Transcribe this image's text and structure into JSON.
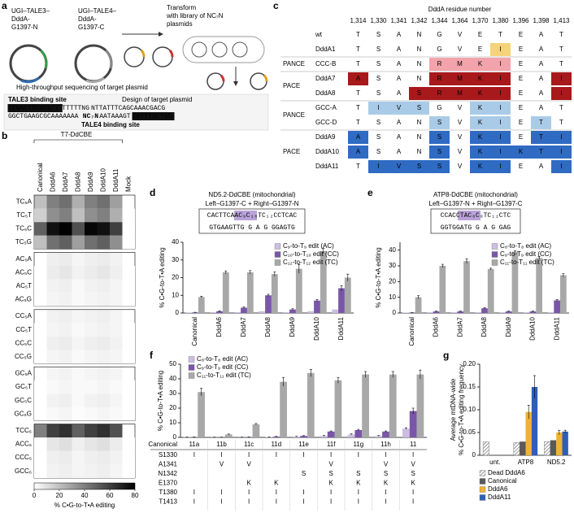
{
  "panel_labels": [
    "a",
    "b",
    "c",
    "d",
    "e",
    "f",
    "g"
  ],
  "diagram_a": {
    "plasmid_1": [
      "UGI–TALE3–",
      "DddA-",
      "G1397-N"
    ],
    "plasmid_2": [
      "UGI–TALE4–",
      "DddA-",
      "G1397-C"
    ],
    "step_1": [
      "Transform",
      "with library of NC₇N",
      "plasmids"
    ],
    "step_2": "High-throughput sequencing of target plasmid",
    "target_title": "Design of target plasmid",
    "site_top": "TALE3 binding site",
    "site_bottom": "TALE4 binding site",
    "seq_top": [
      "CCGACTTCGCGTT",
      "TTTTTNG",
      "NTTATTTCAGCAAACGACG"
    ],
    "seq_bottom": [
      "GGCTGAAGCGCAAAAAAA",
      "NC₇N",
      "AATAAAGT",
      "CGTTTGCTGC"
    ]
  },
  "table_c": {
    "header": "DddA residue number",
    "residues": [
      "1,314",
      "1,330",
      "1,341",
      "1,342",
      "1,344",
      "1,364",
      "1,370",
      "1,380",
      "1,396",
      "1,398",
      "1,413"
    ],
    "sections": [
      {
        "rows": [
          {
            "label": "wt",
            "cells": [
              "T",
              "S",
              "A",
              "N",
              "G",
              "V",
              "E",
              "T",
              "E",
              "A",
              "T"
            ]
          },
          {
            "label": "DddA1",
            "color": "#f5d37a",
            "cells": [
              "T",
              "S",
              "A",
              "N",
              "G",
              "V",
              "E",
              "I",
              "E",
              "A",
              "T"
            ]
          }
        ]
      },
      {
        "name": "PANCE",
        "rows": [
          {
            "label": "CCC-B",
            "color": "#f2a3ab",
            "cells": [
              "T",
              "S",
              "A",
              "N",
              "R",
              "M",
              "K",
              "I",
              "E",
              "A",
              "T"
            ]
          }
        ]
      },
      {
        "name": "PACE",
        "rows": [
          {
            "label": "DddA7",
            "color": "#a8191c",
            "cells": [
              "A",
              "S",
              "A",
              "N",
              "R",
              "M",
              "K",
              "I",
              "E",
              "A",
              "I"
            ]
          },
          {
            "label": "DddA8",
            "color": "#a8191c",
            "cells": [
              "T",
              "S",
              "A",
              "S",
              "R",
              "M",
              "K",
              "I",
              "E",
              "A",
              "I"
            ]
          }
        ]
      },
      {
        "name": "PANCE",
        "rows": [
          {
            "label": "GCC-A",
            "color": "#a9cbe8",
            "cells": [
              "T",
              "I",
              "V",
              "S",
              "G",
              "V",
              "K",
              "I",
              "E",
              "A",
              "T"
            ]
          },
          {
            "label": "GCC-D",
            "color": "#a9cbe8",
            "cells": [
              "T",
              "S",
              "A",
              "N",
              "S",
              "V",
              "K",
              "I",
              "E",
              "T",
              "T"
            ]
          }
        ]
      },
      {
        "name": "PACE",
        "rows": [
          {
            "label": "DddA9",
            "color": "#2f6bc2",
            "cells": [
              "A",
              "S",
              "A",
              "N",
              "S",
              "V",
              "K",
              "I",
              "E",
              "T",
              "I"
            ]
          },
          {
            "label": "DddA10",
            "color": "#2f6bc2",
            "cells": [
              "A",
              "S",
              "A",
              "N",
              "S",
              "V",
              "K",
              "I",
              "K",
              "T",
              "I"
            ]
          },
          {
            "label": "DddA11",
            "color": "#2f6bc2",
            "cells": [
              "T",
              "I",
              "V",
              "S",
              "S",
              "V",
              "K",
              "I",
              "E",
              "A",
              "I"
            ]
          }
        ]
      }
    ]
  },
  "chart_data": [
    {
      "type": "heatmap",
      "title": "T7-DdCBE",
      "columns": [
        "Canonical",
        "DddA6",
        "DddA7",
        "DddA8",
        "DddA9",
        "DddA10",
        "DddA11",
        "Mock"
      ],
      "rows": [
        "TC₅A",
        "TC₅T",
        "TC₅C",
        "TC₅G",
        "AC₅A",
        "AC₅C",
        "AC₅T",
        "AC₅G",
        "CC₅A",
        "CC₅T",
        "CC₅C",
        "CC₅G",
        "GC₅A",
        "GC₅T",
        "GC₅C",
        "GC₅G",
        "TCC₆",
        "ACC₆",
        "CCC₆",
        "GCC₆"
      ],
      "values": [
        [
          20,
          40,
          45,
          25,
          40,
          45,
          30,
          0
        ],
        [
          15,
          35,
          40,
          20,
          35,
          40,
          25,
          0
        ],
        [
          50,
          75,
          80,
          55,
          78,
          75,
          60,
          0
        ],
        [
          20,
          45,
          50,
          30,
          45,
          50,
          35,
          0
        ],
        [
          0,
          5,
          6,
          3,
          5,
          6,
          4,
          0
        ],
        [
          0,
          6,
          8,
          4,
          6,
          8,
          5,
          0
        ],
        [
          0,
          4,
          5,
          2,
          4,
          5,
          3,
          0
        ],
        [
          0,
          3,
          4,
          2,
          3,
          4,
          3,
          0
        ],
        [
          0,
          4,
          5,
          3,
          4,
          5,
          3,
          0
        ],
        [
          0,
          3,
          4,
          2,
          3,
          4,
          3,
          0
        ],
        [
          0,
          5,
          6,
          3,
          5,
          6,
          4,
          0
        ],
        [
          0,
          3,
          4,
          2,
          3,
          4,
          3,
          0
        ],
        [
          0,
          3,
          4,
          2,
          3,
          4,
          3,
          0
        ],
        [
          0,
          2,
          3,
          2,
          2,
          3,
          2,
          0
        ],
        [
          0,
          4,
          5,
          2,
          4,
          5,
          3,
          0
        ],
        [
          0,
          2,
          3,
          1,
          2,
          3,
          2,
          0
        ],
        [
          40,
          60,
          65,
          50,
          60,
          65,
          55,
          0
        ],
        [
          0,
          8,
          10,
          5,
          8,
          10,
          6,
          0
        ],
        [
          0,
          5,
          6,
          3,
          5,
          6,
          4,
          0
        ],
        [
          0,
          4,
          5,
          3,
          4,
          5,
          3,
          0
        ]
      ],
      "colormap": [
        "#ffffff",
        "#000000"
      ],
      "clim": [
        0,
        80
      ],
      "cticks": [
        0,
        20,
        40,
        60,
        80
      ],
      "clabel": "% C•G-to-T•A editing"
    },
    {
      "type": "bar",
      "title": "ND5.2-DdCBE (mitochondrial)",
      "subtitle": "Left–G1397-C + Right–G1397-N",
      "sequence_top": "CACTTCAAC₉C₁₀TC₁₂CCTCAC",
      "sequence_bottom": "GTGAAGTTG G A G GGAGTG",
      "categories": [
        "Canonical",
        "DddA6",
        "DddA7",
        "DddA8",
        "DddA9",
        "DddA10",
        "DddA11"
      ],
      "series": [
        {
          "name": "C₉-to-T₉ edit (AC)",
          "color": "#cdbde3",
          "values": [
            0.3,
            0.5,
            0.5,
            1,
            0.5,
            1,
            2
          ]
        },
        {
          "name": "C₁₀-to-T₁₀ edit (CC)",
          "color": "#7a56a8",
          "values": [
            0.3,
            1,
            3,
            10,
            2,
            7,
            14
          ],
          "errors": [
            0.1,
            0.2,
            0.4,
            0.6,
            0.4,
            0.6,
            1.5
          ]
        },
        {
          "name": "C₁₂-to-T₁₂ edit (TC)",
          "color": "#a8a8a8",
          "values": [
            9,
            23,
            23,
            22,
            25,
            35,
            20
          ],
          "errors": [
            0.5,
            0.8,
            1,
            1.2,
            2.5,
            1.5,
            2
          ]
        }
      ],
      "ylabel": "% C•G-to-T•A editing",
      "ylim": [
        0,
        40
      ],
      "yticks": [
        0,
        10,
        20,
        30,
        40
      ],
      "legend": "upper right"
    },
    {
      "type": "bar",
      "title": "ATP8-DdCBE (mitochondrial)",
      "subtitle": "Left–G1397-N + Right–G1397-C",
      "sequence_top": "CCACCTAC₈C₉TC₁₁CTC",
      "sequence_bottom": "GGTGGATG G A G GAG",
      "categories": [
        "Canonical",
        "DddA6",
        "DddA7",
        "DddA8",
        "DddA9",
        "DddA10",
        "DddA11"
      ],
      "series": [
        {
          "name": "C₈-to-T₈ edit (AC)",
          "color": "#cdbde3",
          "values": [
            0.3,
            0.5,
            0.5,
            0.5,
            0.5,
            0.5,
            0.5
          ]
        },
        {
          "name": "C₉-to-T₉ edit (CC)",
          "color": "#7a56a8",
          "values": [
            0.2,
            1,
            1,
            3,
            1,
            1,
            8
          ],
          "errors": [
            0.1,
            0.2,
            0.2,
            0.4,
            0.2,
            0.2,
            0.5
          ]
        },
        {
          "name": "C₁₁-to-T₁₁ edit (TC)",
          "color": "#a8a8a8",
          "values": [
            10,
            30,
            33,
            28,
            39,
            35,
            24
          ],
          "errors": [
            1,
            1,
            1.5,
            0.5,
            0.5,
            1,
            1
          ]
        }
      ],
      "ylabel": "% C•G-to-T•A editing",
      "ylim": [
        0,
        45
      ],
      "yticks": [
        0,
        10,
        20,
        30,
        40
      ],
      "legend": "upper right"
    },
    {
      "type": "bar",
      "categories": [
        "11a",
        "11b",
        "11c",
        "11d",
        "11e",
        "11f",
        "11g",
        "11h",
        "11"
      ],
      "series": [
        {
          "name": "C₈-to-T₈ edit (AC)",
          "color": "#cdbde3",
          "values": [
            0.2,
            0.1,
            0.1,
            0.3,
            0.5,
            1,
            2,
            1,
            6
          ],
          "errors": [
            0.1,
            0.1,
            0.1,
            0.1,
            0.2,
            0.3,
            0.4,
            0.3,
            0.6
          ]
        },
        {
          "name": "C₉-to-T₉ edit (CC)",
          "color": "#7a56a8",
          "values": [
            0.2,
            0.1,
            0.2,
            0.5,
            1,
            4,
            5,
            4,
            18
          ],
          "errors": [
            0.1,
            0.1,
            0.1,
            0.2,
            0.2,
            0.4,
            0.5,
            0.4,
            2
          ]
        },
        {
          "name": "C₁₁-to-T₁₁ edit (TC)",
          "color": "#a8a8a8",
          "values": [
            31,
            2,
            9,
            38,
            44,
            39,
            43,
            43,
            43
          ],
          "errors": [
            2.5,
            0.3,
            0.5,
            3,
            2.5,
            2,
            2,
            2,
            3
          ]
        }
      ],
      "ylabel": "% C•G-to-T•A editing",
      "ylim": [
        0,
        50
      ],
      "yticks": [
        0,
        10,
        20,
        30,
        40,
        50
      ],
      "legend": "upper left",
      "x_label": "Canonical",
      "mutations": {
        "residues": [
          "S1330",
          "A1341",
          "N1342",
          "E1370",
          "T1380",
          "T1413"
        ],
        "cells": [
          [
            "I",
            "I",
            "I",
            "I",
            "I",
            "I",
            "I",
            "I",
            "I"
          ],
          [
            null,
            "V",
            "V",
            null,
            null,
            "V",
            null,
            "V",
            "V"
          ],
          [
            null,
            null,
            null,
            null,
            "S",
            "S",
            "S",
            "S",
            "S"
          ],
          [
            null,
            null,
            "K",
            "K",
            null,
            "K",
            "K",
            "K",
            "K"
          ],
          [
            "I",
            "I",
            "I",
            "I",
            "I",
            "I",
            "I",
            "I",
            "I"
          ],
          [
            "I",
            "I",
            "I",
            "I",
            "I",
            "I",
            "I",
            "I",
            "I"
          ]
        ]
      }
    },
    {
      "type": "bar",
      "categories": [
        "unt.",
        "ATP8",
        "ND5.2"
      ],
      "series": [
        {
          "name": "Dead DddA6",
          "color": "#bdbdbd",
          "pattern": "hatched",
          "values": [
            0.03,
            0.028,
            0.03
          ]
        },
        {
          "name": "Canonical",
          "color": "#595959",
          "values": [
            null,
            0.03,
            0.033
          ]
        },
        {
          "name": "DddA6",
          "color": "#f2b134",
          "values": [
            null,
            0.095,
            0.05
          ],
          "errors": [
            null,
            0.015,
            0.005
          ]
        },
        {
          "name": "DddA11",
          "color": "#2e5fb8",
          "values": [
            null,
            0.15,
            0.052
          ],
          "errors": [
            null,
            0.025,
            0.003
          ]
        }
      ],
      "ylabel": [
        "Average mtDNA-wide",
        "% C•G-to-T•A editing frequency"
      ],
      "ylim": [
        0,
        0.2
      ],
      "yticks": [
        0,
        0.05,
        {
          "value": 0.1,
          "label": "0.10"
        },
        0.15,
        {
          "value": 0.2,
          "label": "0.20"
        }
      ],
      "legend": "below"
    }
  ]
}
